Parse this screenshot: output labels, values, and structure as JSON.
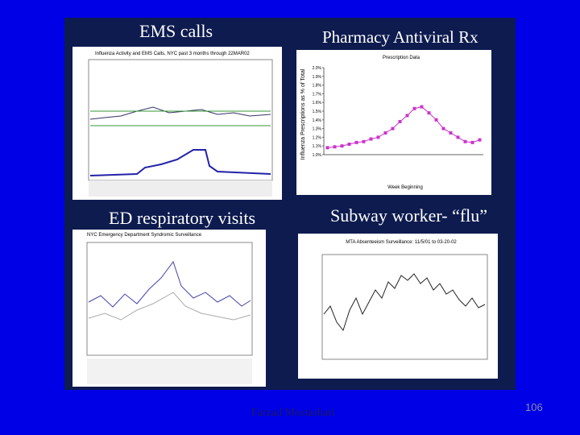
{
  "slide": {
    "panel_titles": [
      "EMS calls",
      "Pharmacy Antiviral Rx",
      "ED respiratory visits",
      "Subway worker- “flu”"
    ],
    "chart_titles": [
      "Influenza Activity and EMS Calls, NYC past 3 months through 22MAR02",
      "NYC Emergency Department Syndromic Surveillance",
      "MTA Absenteeism Surveillance: 11/5/01 to 03-20-02"
    ],
    "footer": "Farzad Mostashari",
    "page_number": "106"
  },
  "chart_data": {
    "type": "line",
    "title": "Prescription Data",
    "y_label": "Influenza Prescriptions as % of Total",
    "x_label": "Week Beginning",
    "categories": [
      null,
      null,
      null,
      null,
      null,
      null,
      null,
      null,
      null,
      null,
      null,
      null,
      null,
      null,
      null,
      null,
      null,
      null,
      null,
      null,
      null,
      null
    ],
    "values": [
      1.08,
      1.09,
      1.1,
      1.12,
      1.14,
      1.15,
      1.18,
      1.2,
      1.25,
      1.3,
      1.38,
      1.45,
      1.53,
      1.55,
      1.48,
      1.4,
      1.3,
      1.25,
      1.2,
      1.15,
      1.14,
      1.17
    ],
    "color": "#cc33cc",
    "ylim": [
      1.0,
      2.0
    ],
    "yticks": [
      {
        "value": 1.0,
        "label": "1.0%"
      },
      {
        "value": 1.1,
        "label": "1.1%"
      },
      {
        "value": 1.2,
        "label": "1.2%"
      },
      {
        "value": 1.3,
        "label": "1.3%"
      },
      {
        "value": 1.4,
        "label": "1.4%"
      },
      {
        "value": 1.5,
        "label": "1.5%"
      },
      {
        "value": 1.6,
        "label": "1.6%"
      },
      {
        "value": 1.7,
        "label": "1.7%"
      },
      {
        "value": 1.8,
        "label": "1.8%"
      },
      {
        "value": 1.9,
        "label": "1.9%"
      },
      {
        "value": 2.0,
        "label": "2.0%"
      }
    ]
  }
}
